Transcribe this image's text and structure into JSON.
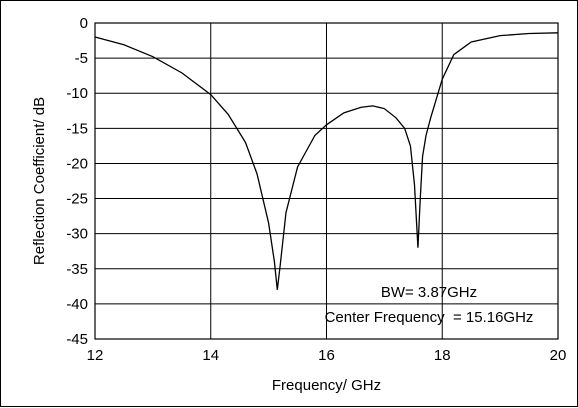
{
  "chart_data": {
    "type": "line",
    "title": "",
    "xlabel": "Frequency/ GHz",
    "ylabel": "Reflection Coefficient/ dB",
    "xlim": [
      12,
      20
    ],
    "ylim": [
      -45,
      0
    ],
    "xticks": [
      12,
      14,
      16,
      18,
      20
    ],
    "yticks": [
      0,
      -5,
      -10,
      -15,
      -20,
      -25,
      -30,
      -35,
      -40,
      -45
    ],
    "grid": true,
    "series": [
      {
        "x": [
          12.0,
          12.5,
          13.0,
          13.5,
          14.0,
          14.3,
          14.6,
          14.8,
          15.0,
          15.1,
          15.15,
          15.2,
          15.3,
          15.5,
          15.8,
          16.0,
          16.3,
          16.6,
          16.8,
          17.0,
          17.2,
          17.35,
          17.45,
          17.52,
          17.58,
          17.62,
          17.66,
          17.72,
          17.8,
          18.0,
          18.2,
          18.5,
          19.0,
          19.5,
          20.0
        ],
        "y": [
          -2.0,
          -3.1,
          -4.8,
          -7.1,
          -10.2,
          -13.0,
          -17.0,
          -21.5,
          -28.5,
          -34.0,
          -38.0,
          -34.5,
          -27.0,
          -20.5,
          -16.0,
          -14.5,
          -12.8,
          -12.0,
          -11.8,
          -12.2,
          -13.5,
          -15.0,
          -17.5,
          -23.0,
          -32.0,
          -25.0,
          -19.0,
          -16.0,
          -13.5,
          -8.0,
          -4.5,
          -2.7,
          -1.8,
          -1.5,
          -1.4
        ]
      }
    ],
    "annotations": [
      "BW= 3.87GHz",
      "Center Frequency  = 15.16GHz"
    ],
    "line_color": "#000000",
    "grid_color": "#000000"
  }
}
